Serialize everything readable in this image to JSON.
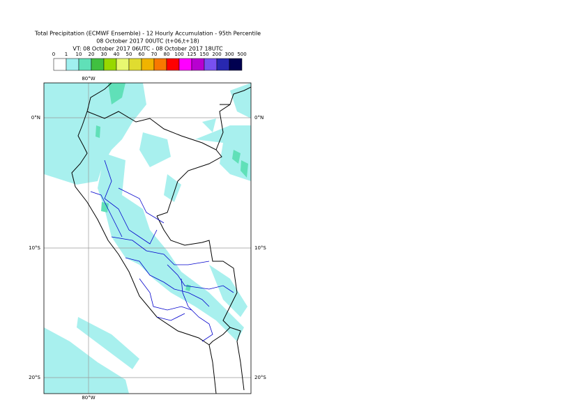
{
  "header": {
    "title": [
      "Total Precipitation (ECMWF Ensemble) - 12 Hourly Accumulation - 95th Percentile",
      "08 October 2017 00UTC (t+06,t+18)",
      "VT: 08 October 2017 06UTC - 08 October 2017 18UTC"
    ]
  },
  "legend": {
    "ticks": [
      0,
      1,
      10,
      20,
      30,
      40,
      50,
      60,
      70,
      80,
      100,
      125,
      150,
      200,
      300,
      500
    ],
    "colors": [
      "#ffffff",
      "#a0f0f0",
      "#60e0b8",
      "#40c040",
      "#98d800",
      "#e8f870",
      "#e0dc30",
      "#f0b400",
      "#f87800",
      "#ff0000",
      "#ff00ff",
      "#b800d0",
      "#7850f0",
      "#2828b0",
      "#000050"
    ]
  },
  "map": {
    "lon_labels": {
      "top": "80°W",
      "bottom": "80°W"
    },
    "lat_labels": [
      {
        "left": "0°N",
        "right": "0°N"
      },
      {
        "left": "10°S",
        "right": "10°S"
      },
      {
        "left": "20°S",
        "right": "20°S"
      }
    ]
  }
}
